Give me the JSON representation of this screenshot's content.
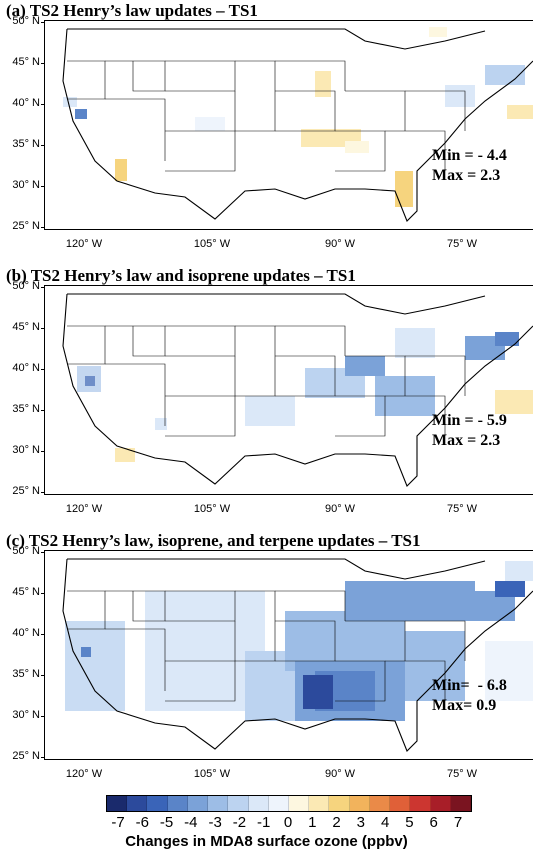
{
  "lat_labels": [
    "50° N",
    "45° N",
    "40° N",
    "35° N",
    "30° N",
    "25° N"
  ],
  "lon_labels": [
    "120° W",
    "105° W",
    "90° W",
    "75° W"
  ],
  "panels": [
    {
      "title": "(a) TS2 Henry’s law updates – TS1",
      "min_text": "Min = - 4.4",
      "max_text": "Max = 2.3"
    },
    {
      "title": "(b) TS2 Henry’s law and isoprene updates – TS1",
      "min_text": "Min = - 5.9",
      "max_text": "Max = 2.3"
    },
    {
      "title": "(c) TS2 Henry’s law, isoprene, and terpene updates – TS1",
      "min_text": "Min=  - 6.8",
      "max_text": "Max= 0.9"
    }
  ],
  "colorbar": {
    "ticks": [
      "-7",
      "-6",
      "-5",
      "-4",
      "-3",
      "-2",
      "-1",
      "0",
      "1",
      "2",
      "3",
      "4",
      "5",
      "6",
      "7"
    ],
    "label": "Changes in MDA8 surface ozone (ppbv)",
    "colors": [
      "#1a2a6c",
      "#2c4a9c",
      "#3a64b8",
      "#5a84c8",
      "#7ba2d8",
      "#9dbde6",
      "#bcd3f0",
      "#dbe8f8",
      "#eef4fc",
      "#fdf7e0",
      "#fbe9b4",
      "#f6d47e",
      "#f2b35c",
      "#ea8a48",
      "#e06038",
      "#cc3630",
      "#a81e28",
      "#7a1420"
    ]
  }
}
